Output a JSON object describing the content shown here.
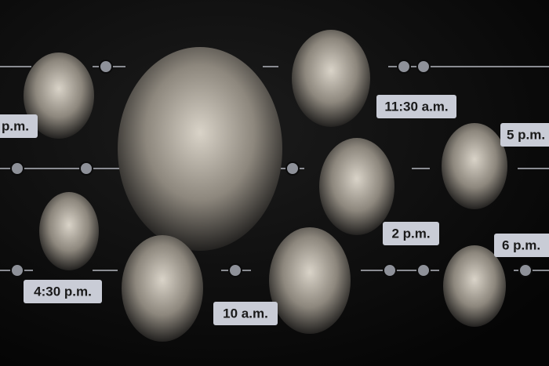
{
  "time_labels": [
    "p.m.",
    "11:30 a.m.",
    "5 p.m.",
    "2 p.m.",
    "6 p.m.",
    "4:30 p.m.",
    "10 a.m."
  ]
}
